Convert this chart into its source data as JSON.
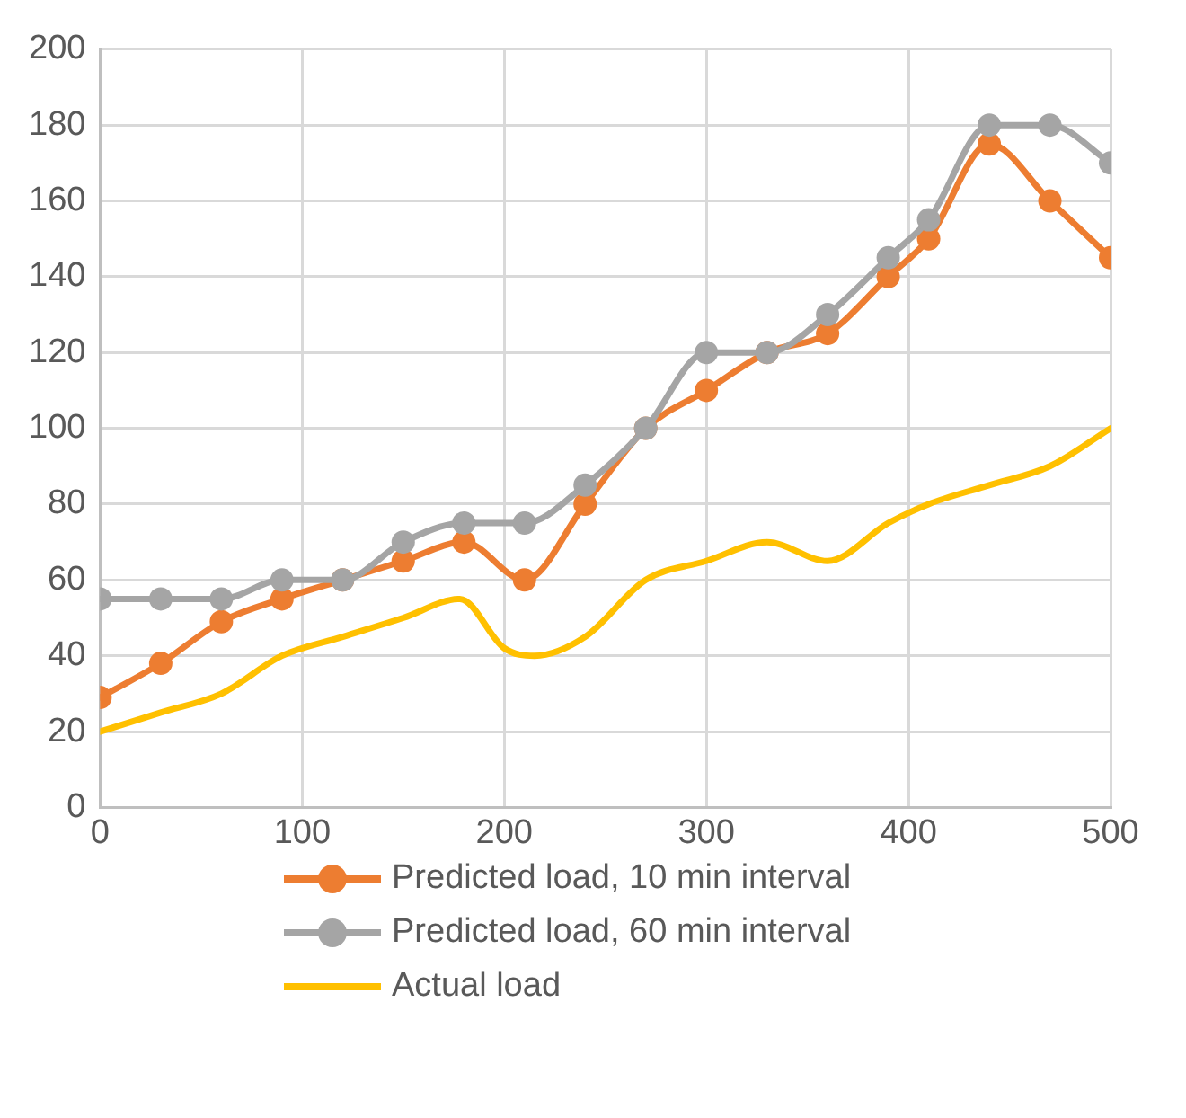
{
  "chart_data": {
    "type": "line",
    "series": [
      {
        "name": "Predicted load, 10 min interval",
        "color": "#ed7d31",
        "marker": "circle",
        "x": [
          0,
          30,
          60,
          90,
          120,
          150,
          180,
          210,
          240,
          270,
          300,
          330,
          360,
          390,
          410,
          440,
          470,
          500
        ],
        "values": [
          29,
          38,
          49,
          55,
          60,
          65,
          70,
          60,
          80,
          100,
          110,
          120,
          125,
          140,
          150,
          175,
          160,
          145
        ]
      },
      {
        "name": "Predicted load, 60 min interval",
        "color": "#a5a5a5",
        "marker": "circle",
        "x": [
          0,
          30,
          60,
          90,
          120,
          150,
          180,
          210,
          240,
          270,
          300,
          330,
          360,
          390,
          410,
          440,
          470,
          500
        ],
        "values": [
          55,
          55,
          55,
          60,
          60,
          70,
          75,
          75,
          85,
          100,
          120,
          120,
          130,
          145,
          155,
          180,
          180,
          170
        ]
      },
      {
        "name": "Actual load",
        "color": "#ffc000",
        "marker": "none",
        "x": [
          0,
          30,
          60,
          90,
          120,
          150,
          178,
          200,
          215,
          240,
          270,
          300,
          330,
          360,
          390,
          410,
          440,
          470,
          500
        ],
        "values": [
          20,
          25,
          30,
          40,
          45,
          50,
          55,
          42,
          40,
          45,
          60,
          65,
          70,
          65,
          75,
          80,
          85,
          90,
          100
        ]
      }
    ],
    "xlim": [
      0,
      500
    ],
    "xticks": [
      0,
      100,
      200,
      300,
      400,
      500
    ],
    "ylim": [
      0,
      200
    ],
    "yticks": [
      0,
      20,
      40,
      60,
      80,
      100,
      120,
      140,
      160,
      180,
      200
    ],
    "grid": true,
    "legend": "bottom"
  }
}
